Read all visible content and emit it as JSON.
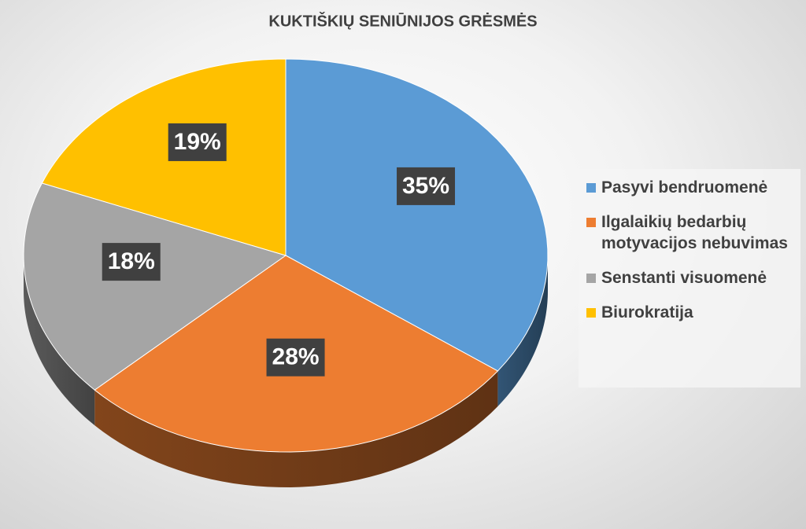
{
  "chart_data": {
    "type": "pie",
    "title": "KUKTIŠKIŲ SENIŪNIJOS GRĖSMĖS",
    "categories": [
      "Pasyvi bendruomenė",
      "Ilgalaikių bedarbių motyvacijos nebuvimas",
      "Senstanti visuomenė",
      "Biurokratija"
    ],
    "values": [
      35,
      28,
      18,
      19
    ],
    "value_labels": [
      "35%",
      "28%",
      "18%",
      "19%"
    ],
    "colors": [
      "#5b9bd5",
      "#ed7d31",
      "#a5a5a5",
      "#ffc000"
    ],
    "legend": "right"
  }
}
